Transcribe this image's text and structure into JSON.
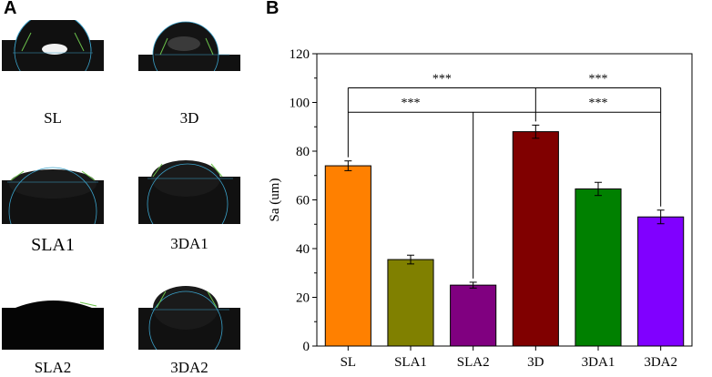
{
  "panels": {
    "a": "A",
    "b": "B"
  },
  "photos": [
    {
      "label": "SL"
    },
    {
      "label": "3D"
    },
    {
      "label": "SLA1"
    },
    {
      "label": "3DA1"
    },
    {
      "label": "SLA2"
    },
    {
      "label": "3DA2"
    }
  ],
  "chart_data": {
    "type": "bar",
    "title": "",
    "xlabel": "",
    "ylabel": "Sa (um)",
    "ylim": [
      0,
      120
    ],
    "yticks": [
      0,
      20,
      40,
      60,
      80,
      100,
      120
    ],
    "categories": [
      "SL",
      "SLA1",
      "SLA2",
      "3D",
      "3DA1",
      "3DA2"
    ],
    "values": [
      74,
      35.5,
      25,
      88,
      64.5,
      53
    ],
    "errors": [
      2,
      1.8,
      1.2,
      2.7,
      2.7,
      2.8
    ],
    "colors": [
      "#FF8000",
      "#808000",
      "#800080",
      "#800000",
      "#008000",
      "#8000FF"
    ],
    "significance": [
      {
        "from": "SL",
        "to": "3DA2",
        "label": "***",
        "level": 106
      },
      {
        "from": "SL",
        "to": "3DA2",
        "label": "***",
        "level": 96
      },
      {
        "from": "SLA2",
        "to": "3DA2",
        "label": "***",
        "level": 96
      }
    ]
  }
}
